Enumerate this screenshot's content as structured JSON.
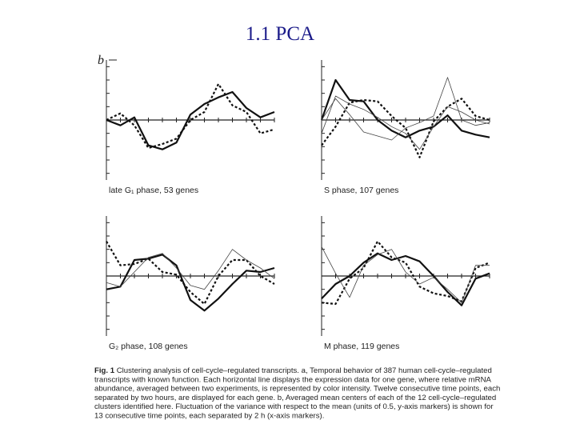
{
  "title": "1.1 PCA",
  "panel_label": "b",
  "caption": {
    "label": "Fig. 1",
    "lines": [
      " Clustering analysis of cell-cycle–regulated transcripts. a, Temporal behavior of 387 human cell-cycle–regulated",
      "transcripts with known function. Each horizontal line displays the expression data for one gene, where relative mRNA",
      "abundance, averaged between two experiments, is represented by color intensity. Twelve consecutive time points, each",
      "separated by two hours, are displayed for each gene. b, Averaged mean centers of each of the 12 cell-cycle–regulated",
      "clusters identified here. Fluctuation of the variance with respect to the mean (units of 0.5, y-axis markers) is shown for",
      "13 consecutive time points, each separated by 2 h (x-axis markers)."
    ]
  },
  "chart_data": [
    {
      "type": "line",
      "caption": "late G₁ phase, 53 genes",
      "x": [
        0,
        1,
        2,
        3,
        4,
        5,
        6,
        7,
        8,
        9,
        10,
        11,
        12
      ],
      "xlim": [
        0,
        12
      ],
      "ylim": [
        -4.5,
        4.5
      ],
      "yticks": [
        -4,
        -3,
        -2,
        -1,
        0,
        1,
        2,
        3,
        4
      ],
      "series": [
        {
          "style": "thick",
          "color": "#111111",
          "values": [
            0,
            -0.4,
            0.2,
            -1.9,
            -2.2,
            -1.7,
            0.4,
            1.2,
            1.7,
            2.1,
            0.9,
            0.2,
            0.6
          ]
        },
        {
          "style": "dotted",
          "color": "#111111",
          "values": [
            0,
            0.5,
            -0.4,
            -2.1,
            -1.8,
            -1.4,
            0,
            0.6,
            2.7,
            1.1,
            0.6,
            -1.0,
            -0.7
          ]
        }
      ]
    },
    {
      "type": "line",
      "caption": "S phase, 107 genes",
      "x": [
        0,
        1,
        2,
        3,
        4,
        5,
        6,
        7,
        8,
        9,
        10,
        11,
        12
      ],
      "xlim": [
        0,
        12
      ],
      "ylim": [
        -4.5,
        4.5
      ],
      "yticks": [
        -4,
        -3,
        -2,
        -1,
        0,
        1,
        2,
        3,
        4
      ],
      "series": [
        {
          "style": "thick",
          "color": "#111111",
          "values": [
            0,
            3.0,
            1.5,
            1.4,
            0,
            -0.8,
            -1.3,
            -0.8,
            -0.5,
            0.35,
            -0.8,
            -1.1,
            -1.3
          ]
        },
        {
          "style": "dotted",
          "color": "#111111",
          "values": [
            -1.9,
            -0.5,
            1.3,
            1.5,
            1.4,
            0.3,
            -0.6,
            -2.8,
            -0.1,
            1.0,
            1.6,
            0.3,
            0.0
          ]
        },
        {
          "style": "thin",
          "color": "#444444",
          "values": [
            0,
            1.6,
            0.4,
            -0.9,
            -1.2,
            -1.5,
            -0.6,
            -0.2,
            0.3,
            3.2,
            0.0,
            -0.4,
            -0.2
          ]
        },
        {
          "style": "thin",
          "color": "#444444",
          "values": [
            -1.0,
            1.8,
            1.2,
            0.8,
            0.2,
            -0.5,
            -1.0,
            -2.2,
            -0.5,
            1.0,
            0.6,
            0,
            -0.3
          ]
        }
      ]
    },
    {
      "type": "line",
      "caption": "G₂ phase, 108 genes",
      "x": [
        0,
        1,
        2,
        3,
        4,
        5,
        6,
        7,
        8,
        9,
        10,
        11,
        12
      ],
      "xlim": [
        0,
        12
      ],
      "ylim": [
        -4.5,
        4.5
      ],
      "yticks": [
        -4,
        -3,
        -2,
        -1,
        0,
        1,
        2,
        3,
        4
      ],
      "series": [
        {
          "style": "thick",
          "color": "#111111",
          "values": [
            -1.0,
            -0.8,
            1.2,
            1.3,
            1.6,
            0.8,
            -1.8,
            -2.6,
            -1.7,
            -0.6,
            0.4,
            0.3,
            0.6
          ]
        },
        {
          "style": "dotted",
          "color": "#111111",
          "values": [
            2.6,
            0.8,
            0.9,
            1.3,
            0.3,
            0.1,
            -1.2,
            -2.1,
            0.0,
            1.2,
            1.2,
            0.0,
            -0.6
          ]
        },
        {
          "style": "thin",
          "color": "#444444",
          "values": [
            -0.5,
            -0.8,
            0.3,
            1.4,
            1.7,
            0.6,
            -0.7,
            -1.0,
            0.4,
            2.0,
            1.2,
            0.6,
            -0.2
          ]
        }
      ]
    },
    {
      "type": "line",
      "caption": "M phase, 119 genes",
      "x": [
        0,
        1,
        2,
        3,
        4,
        5,
        6,
        7,
        8,
        9,
        10,
        11,
        12
      ],
      "xlim": [
        0,
        12
      ],
      "ylim": [
        -4.5,
        4.5
      ],
      "yticks": [
        -4,
        -3,
        -2,
        -1,
        0,
        1,
        2,
        3,
        4
      ],
      "series": [
        {
          "style": "thick",
          "color": "#111111",
          "values": [
            -1.7,
            -0.6,
            0.0,
            1.0,
            1.7,
            1.2,
            1.5,
            1.1,
            0.0,
            -1.2,
            -2.2,
            -0.2,
            0.2
          ]
        },
        {
          "style": "dotted",
          "color": "#111111",
          "values": [
            -2.0,
            -2.1,
            -0.2,
            0.6,
            2.6,
            1.4,
            1.0,
            -0.8,
            -1.3,
            -1.5,
            -1.9,
            0.6,
            1.0
          ]
        },
        {
          "style": "thin",
          "color": "#444444",
          "values": [
            2.2,
            0.2,
            -1.6,
            0.8,
            1.6,
            2.0,
            0.3,
            -0.6,
            -0.1,
            -1.0,
            -2.0,
            0.8,
            0.8
          ]
        }
      ]
    }
  ]
}
